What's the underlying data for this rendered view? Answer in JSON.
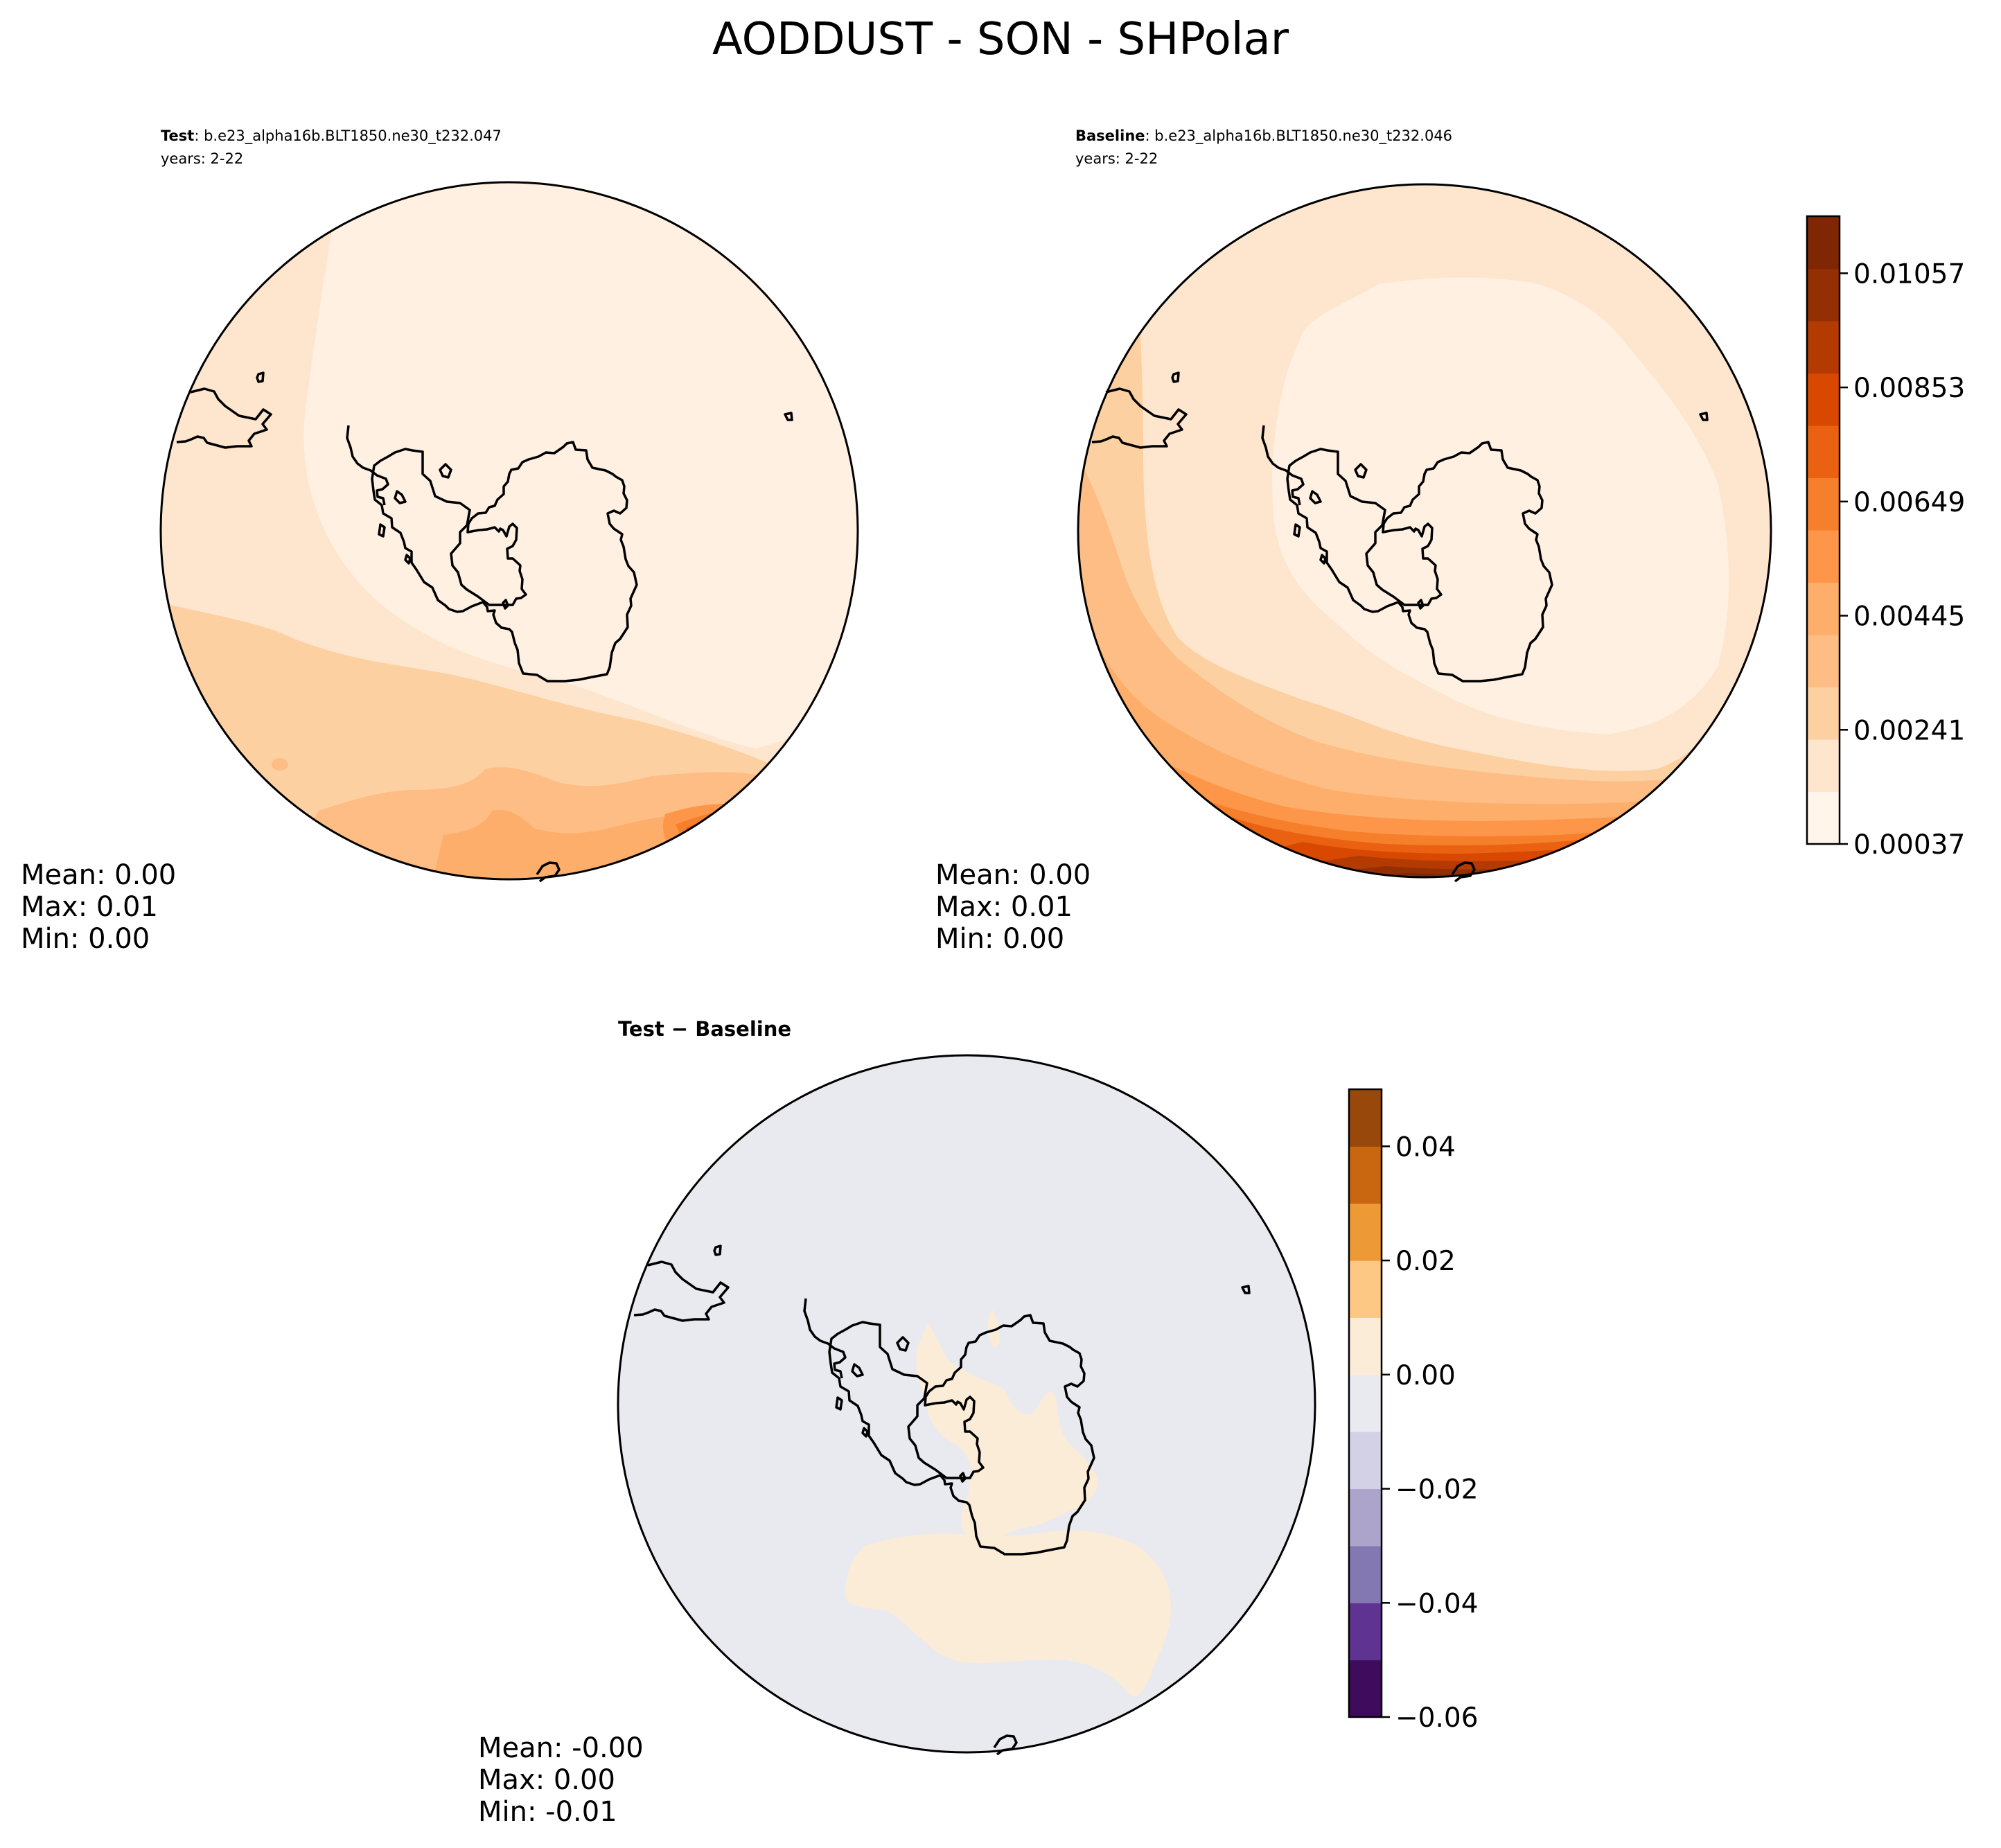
{
  "figure": {
    "title": "AODDUST - SON - SHPolar"
  },
  "panels": {
    "test": {
      "label_bold": "Test",
      "label_rest": ": b.e23_alpha16b.BLT1850.ne30_t232.047",
      "years": "years: 2-22",
      "stats": {
        "mean": "Mean:  0.00",
        "max": "Max:  0.01",
        "min": "Min:  0.00"
      }
    },
    "baseline": {
      "label_bold": "Baseline",
      "label_rest": ": b.e23_alpha16b.BLT1850.ne30_t232.046",
      "years": "years: 2-22",
      "stats": {
        "mean": "Mean:  0.00",
        "max": "Max:  0.01",
        "min": "Min:  0.00"
      }
    },
    "diff": {
      "label": "Test − Baseline",
      "stats": {
        "mean": "Mean: -0.00",
        "max": "Max:  0.00",
        "min": "Min: -0.01"
      }
    }
  },
  "chart_data": [
    {
      "type": "heatmap",
      "panel": "test",
      "projection": "south polar stereographic",
      "levels": [
        0.00037,
        0.00139,
        0.00241,
        0.00343,
        0.00445,
        0.00547,
        0.00649,
        0.00751,
        0.00853,
        0.00955,
        0.01057,
        0.01159
      ],
      "field_pattern": "low values over Antarctica and the Pacific side; values increase toward the South Atlantic / southern Africa sector at the bottom edge",
      "mean": 0.0,
      "max": 0.01,
      "min": 0.0
    },
    {
      "type": "heatmap",
      "panel": "baseline",
      "projection": "south polar stereographic",
      "levels": [
        0.00037,
        0.00139,
        0.00241,
        0.00343,
        0.00445,
        0.00547,
        0.00649,
        0.00751,
        0.00853,
        0.00955,
        0.01057,
        0.01159
      ],
      "field_pattern": "lowest over Antarctica; concentric bands increasing outward, maximum near bottom edge (South Atlantic sector)",
      "mean": 0.0,
      "max": 0.01,
      "min": 0.0,
      "colorbar": {
        "cmap": "Oranges",
        "ticks": [
          "0.00037",
          "0.00241",
          "0.00445",
          "0.00649",
          "0.00853",
          "0.01057"
        ],
        "colors": [
          "#fff5eb",
          "#fee6ce",
          "#fdd0a2",
          "#fdbd84",
          "#fdae6b",
          "#fd9649",
          "#f67f2c",
          "#ea6211",
          "#d94801",
          "#b33b02",
          "#932f03",
          "#7f2704"
        ]
      }
    },
    {
      "type": "heatmap",
      "panel": "diff",
      "projection": "south polar stereographic",
      "levels": [
        -0.06,
        -0.05,
        -0.04,
        -0.03,
        -0.02,
        -0.01,
        0.0,
        0.01,
        0.02,
        0.03,
        0.04,
        0.05
      ],
      "field_pattern": "near zero everywhere; small positive band south of Africa and over parts of East Antarctica",
      "mean": -0.0,
      "max": 0.0,
      "min": -0.01,
      "colorbar": {
        "cmap": "PuOr_r",
        "ticks": [
          "0.04",
          "0.02",
          "0.00",
          "−0.02",
          "−0.04",
          "−0.06"
        ],
        "colors": [
          "#3f0b5c",
          "#5e3391",
          "#8478b2",
          "#ada4cc",
          "#d3d1e6",
          "#e9e9f0",
          "#fbecd8",
          "#fdc883",
          "#ed9a36",
          "#c96710",
          "#98480b"
        ]
      }
    }
  ]
}
